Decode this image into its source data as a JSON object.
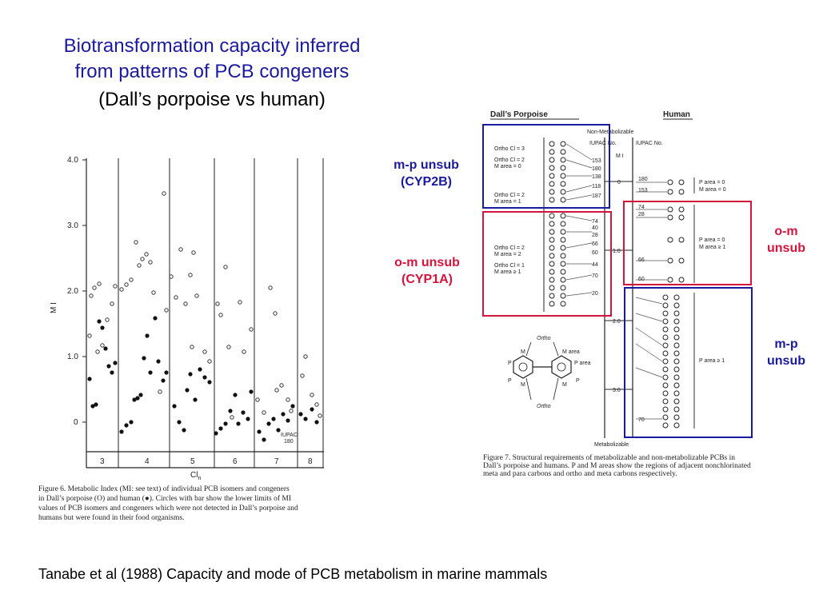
{
  "slide": {
    "title_line1": "Biotransformation capacity inferred",
    "title_line2": "from patterns of PCB congeners",
    "title_line3": "(Dall’s porpoise vs human)",
    "footer": "Tanabe et al (1988) Capacity and mode of PCB metabolism in marine mammals"
  },
  "annotations": {
    "mp_cyp2b_1": "m-p unsub",
    "mp_cyp2b_2": "(CYP2B)",
    "om_cyp1a_1": "o-m unsub",
    "om_cyp1a_2": "(CYP1A)",
    "om_right_1": "o-m",
    "om_right_2": "unsub",
    "mp_right_1": "m-p",
    "mp_right_2": "unsub",
    "colors": {
      "navy": "#1a1a9e",
      "crimson": "#d4143c"
    }
  },
  "figure6": {
    "y_label": "M I",
    "x_label": "Cl",
    "x_label_sub": "n",
    "y_ticks": [
      "4.0",
      "3.0",
      "2.0",
      "1.0",
      "0"
    ],
    "cl_groups": [
      "3",
      "4",
      "5",
      "6",
      "7",
      "8"
    ],
    "iupac_label": "IUPAC",
    "iupac_no": "180",
    "caption_line1": "Figure 6.   Metabolic Index (MI: see text) of individual PCB isomers and congeners",
    "caption_line2": "in Dall’s porpoise (O) and human (●). Circles with bar show the lower limits of MI",
    "caption_line3": "values of PCB isomers and congeners which were not detected in Dall’s porpoise and",
    "caption_line4": "humans but were found in their food organisms."
  },
  "figure7": {
    "header_left": "Dall’s Porpoise",
    "header_right": "Human",
    "non_metabolizable": "Non-Metabolizable",
    "metabolizable": "Metabolizable",
    "mi_label": "M I",
    "iupac_no": "IUPAC No.",
    "mi_ticks": [
      "0",
      "1.0",
      "2.0",
      "3.0"
    ],
    "left_groups": [
      {
        "line1": "Ortho Cl = 3",
        "line2": ""
      },
      {
        "line1": "Ortho Cl = 2",
        "line2": "M area = 0"
      },
      {
        "line1": "Ortho Cl = 2",
        "line2": "M area = 1"
      },
      {
        "line1": "Ortho Cl = 2",
        "line2": "M area = 2"
      },
      {
        "line1": "Ortho Cl = 1",
        "line2": "M area ≥ 1"
      }
    ],
    "right_groups": [
      {
        "line1": "P area = 0",
        "line2": "M area = 0"
      },
      {
        "line1": "P area = 0",
        "line2": "M area ≥ 1"
      },
      {
        "line1": "P area ≥ 1",
        "line2": ""
      }
    ],
    "right_ids_top": [
      "180",
      "153"
    ],
    "right_ids_mid": [
      "74",
      "28",
      "66",
      "60"
    ],
    "right_ids_low": [
      "70"
    ],
    "left_ids": [
      "153",
      "180",
      "138",
      "118",
      "187",
      "74",
      "40",
      "28",
      "66",
      "60",
      "44",
      "70",
      "20"
    ],
    "struct_labels": {
      "ortho": "Ortho",
      "m": "M",
      "p": "P",
      "m_area": "M area",
      "p_area": "P area"
    },
    "caption_line1": "Figure 7.   Structural requirements of metabolizable and non-metabolizable PCBs in",
    "caption_line2": "Dall’s porpoise and humans. P and M areas show the regions of adjacent nonchlorinated",
    "caption_line3": "meta and para carbons and ortho and meta carbons respectively."
  }
}
